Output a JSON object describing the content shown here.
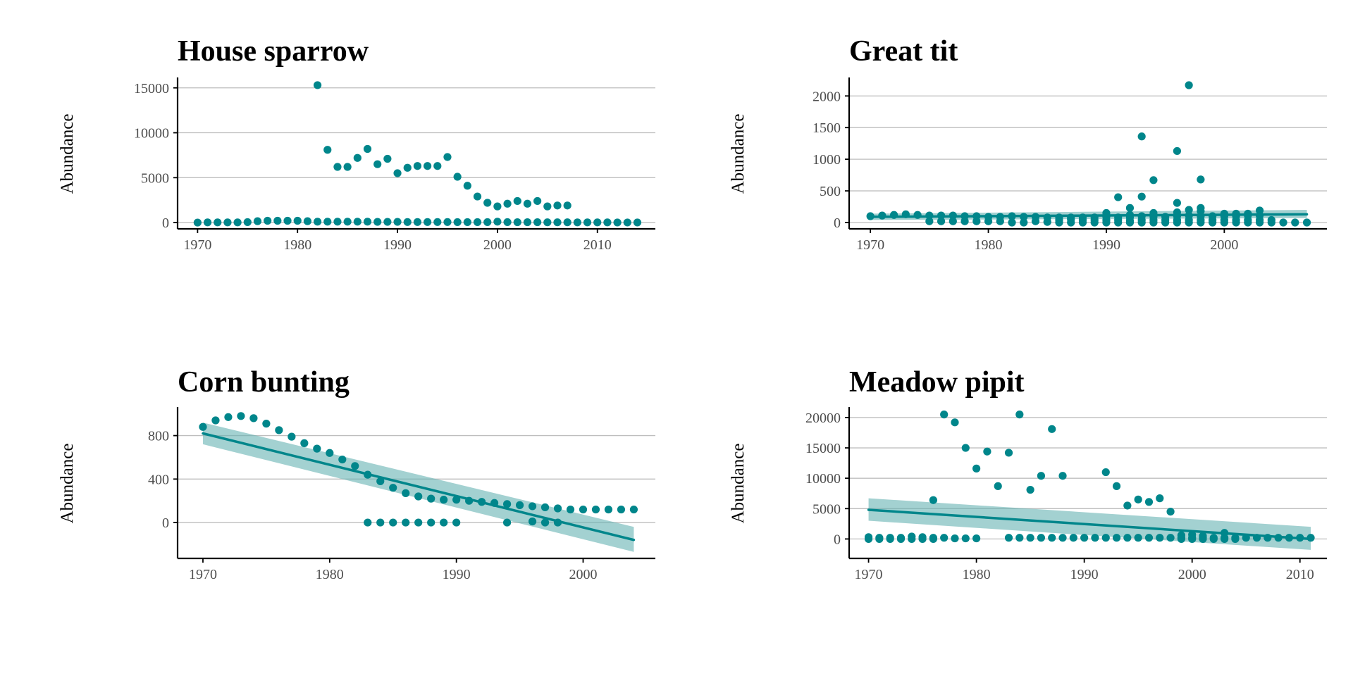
{
  "colors": {
    "point": "#00868B",
    "trend": "#00868B",
    "band": "#66B2B2",
    "grid": "#BEBEBE",
    "axis": "#000000",
    "tick_text": "#4D4D4D"
  },
  "chart_data": [
    {
      "type": "scatter",
      "title": "House sparrow",
      "xlabel": "",
      "ylabel": "Abundance",
      "xlim": [
        1968,
        2015.8
      ],
      "ylim": [
        -700,
        16000
      ],
      "xticks": [
        1970,
        1980,
        1990,
        2000,
        2010
      ],
      "xtick_labels": [
        "1970",
        "1980",
        "1990",
        "2000",
        "2010"
      ],
      "yticks": [
        0,
        5000,
        10000,
        15000
      ],
      "ytick_labels": [
        "0",
        "5000",
        "10000",
        "15000"
      ],
      "grid": "horizontal",
      "points": [
        [
          1970,
          0
        ],
        [
          1971,
          20
        ],
        [
          1972,
          20
        ],
        [
          1973,
          20
        ],
        [
          1974,
          20
        ],
        [
          1975,
          50
        ],
        [
          1976,
          150
        ],
        [
          1977,
          200
        ],
        [
          1978,
          200
        ],
        [
          1979,
          200
        ],
        [
          1980,
          200
        ],
        [
          1981,
          150
        ],
        [
          1982,
          100
        ],
        [
          1983,
          100
        ],
        [
          1984,
          100
        ],
        [
          1985,
          100
        ],
        [
          1986,
          100
        ],
        [
          1987,
          100
        ],
        [
          1988,
          80
        ],
        [
          1989,
          80
        ],
        [
          1990,
          80
        ],
        [
          1991,
          60
        ],
        [
          1992,
          60
        ],
        [
          1993,
          60
        ],
        [
          1994,
          60
        ],
        [
          1995,
          60
        ],
        [
          1996,
          50
        ],
        [
          1997,
          50
        ],
        [
          1998,
          50
        ],
        [
          1999,
          50
        ],
        [
          2000,
          100
        ],
        [
          2001,
          50
        ],
        [
          2002,
          40
        ],
        [
          2003,
          40
        ],
        [
          2004,
          40
        ],
        [
          2005,
          30
        ],
        [
          2006,
          30
        ],
        [
          2007,
          30
        ],
        [
          2008,
          20
        ],
        [
          2009,
          20
        ],
        [
          2010,
          20
        ],
        [
          2011,
          20
        ],
        [
          2012,
          10
        ],
        [
          2013,
          10
        ],
        [
          2014,
          10
        ],
        [
          1982,
          15300
        ],
        [
          1983,
          8100
        ],
        [
          1984,
          6200
        ],
        [
          1985,
          6200
        ],
        [
          1986,
          7200
        ],
        [
          1987,
          8200
        ],
        [
          1988,
          6500
        ],
        [
          1989,
          7100
        ],
        [
          1990,
          5500
        ],
        [
          1991,
          6100
        ],
        [
          1992,
          6300
        ],
        [
          1993,
          6300
        ],
        [
          1994,
          6300
        ],
        [
          1995,
          7300
        ],
        [
          1996,
          5100
        ],
        [
          1997,
          4100
        ],
        [
          1998,
          2900
        ],
        [
          1999,
          2200
        ],
        [
          2000,
          1800
        ],
        [
          2001,
          2100
        ],
        [
          2002,
          2400
        ],
        [
          2003,
          2100
        ],
        [
          2004,
          2400
        ],
        [
          2005,
          1800
        ],
        [
          2006,
          1900
        ],
        [
          2007,
          1900
        ]
      ],
      "trend": null
    },
    {
      "type": "scatter",
      "title": "Great tit",
      "xlabel": "",
      "ylabel": "Abundance",
      "xlim": [
        1968.2,
        2008.7
      ],
      "ylim": [
        -100,
        2270
      ],
      "xticks": [
        1970,
        1980,
        1990,
        2000
      ],
      "xtick_labels": [
        "1970",
        "1980",
        "1990",
        "2000"
      ],
      "yticks": [
        0,
        500,
        1000,
        1500,
        2000
      ],
      "ytick_labels": [
        "0",
        "500",
        "1000",
        "1500",
        "2000"
      ],
      "grid": "horizontal",
      "points": [
        [
          1970,
          100
        ],
        [
          1971,
          110
        ],
        [
          1972,
          120
        ],
        [
          1973,
          130
        ],
        [
          1974,
          120
        ],
        [
          1975,
          110
        ],
        [
          1976,
          110
        ],
        [
          1977,
          110
        ],
        [
          1978,
          100
        ],
        [
          1979,
          100
        ],
        [
          1980,
          90
        ],
        [
          1981,
          90
        ],
        [
          1982,
          100
        ],
        [
          1983,
          90
        ],
        [
          1984,
          90
        ],
        [
          1985,
          80
        ],
        [
          1986,
          80
        ],
        [
          1987,
          80
        ],
        [
          1988,
          80
        ],
        [
          1989,
          80
        ],
        [
          1990,
          90
        ],
        [
          1991,
          80
        ],
        [
          1992,
          80
        ],
        [
          1993,
          100
        ],
        [
          1994,
          90
        ],
        [
          1995,
          90
        ],
        [
          1996,
          100
        ],
        [
          1997,
          110
        ],
        [
          1998,
          100
        ],
        [
          1999,
          100
        ],
        [
          2000,
          100
        ],
        [
          2001,
          100
        ],
        [
          2002,
          110
        ],
        [
          2003,
          110
        ],
        [
          1975,
          20
        ],
        [
          1976,
          20
        ],
        [
          1977,
          20
        ],
        [
          1978,
          20
        ],
        [
          1979,
          20
        ],
        [
          1980,
          20
        ],
        [
          1981,
          20
        ],
        [
          1982,
          0
        ],
        [
          1983,
          0
        ],
        [
          1984,
          20
        ],
        [
          1985,
          10
        ],
        [
          1986,
          0
        ],
        [
          1987,
          0
        ],
        [
          1988,
          0
        ],
        [
          1989,
          0
        ],
        [
          1990,
          0
        ],
        [
          1991,
          0
        ],
        [
          1992,
          0
        ],
        [
          1993,
          0
        ],
        [
          1994,
          0
        ],
        [
          1995,
          0
        ],
        [
          1996,
          0
        ],
        [
          1997,
          0
        ],
        [
          1998,
          0
        ],
        [
          1999,
          0
        ],
        [
          2000,
          0
        ],
        [
          2001,
          0
        ],
        [
          2002,
          0
        ],
        [
          2003,
          0
        ],
        [
          2004,
          0
        ],
        [
          2005,
          0
        ],
        [
          2006,
          0
        ],
        [
          2007,
          0
        ],
        [
          1986,
          40
        ],
        [
          1987,
          50
        ],
        [
          1988,
          40
        ],
        [
          1989,
          40
        ],
        [
          1990,
          40
        ],
        [
          1991,
          40
        ],
        [
          1992,
          30
        ],
        [
          1993,
          40
        ],
        [
          1994,
          40
        ],
        [
          1995,
          40
        ],
        [
          1996,
          40
        ],
        [
          1997,
          40
        ],
        [
          1998,
          40
        ],
        [
          1999,
          40
        ],
        [
          2000,
          40
        ],
        [
          2001,
          40
        ],
        [
          2002,
          40
        ],
        [
          2003,
          40
        ],
        [
          2004,
          40
        ],
        [
          1990,
          150
        ],
        [
          1992,
          120
        ],
        [
          1994,
          150
        ],
        [
          1996,
          160
        ],
        [
          1997,
          200
        ],
        [
          1998,
          180
        ],
        [
          2000,
          140
        ],
        [
          2001,
          140
        ],
        [
          2002,
          140
        ],
        [
          2003,
          190
        ],
        [
          1991,
          400
        ],
        [
          1992,
          230
        ],
        [
          1993,
          1360
        ],
        [
          1993,
          410
        ],
        [
          1994,
          670
        ],
        [
          1996,
          1130
        ],
        [
          1996,
          310
        ],
        [
          1997,
          2170
        ],
        [
          1998,
          680
        ],
        [
          1998,
          230
        ]
      ],
      "trend": {
        "x": [
          1970,
          2007
        ],
        "y": [
          90,
          130
        ],
        "band_lower": [
          40,
          70
        ],
        "band_upper": [
          140,
          200
        ]
      }
    },
    {
      "type": "scatter",
      "title": "Corn bunting",
      "xlabel": "",
      "ylabel": "Abundance",
      "xlim": [
        1968,
        2005.7
      ],
      "ylim": [
        -330,
        1050
      ],
      "xticks": [
        1970,
        1980,
        1990,
        2000
      ],
      "xtick_labels": [
        "1970",
        "1980",
        "1990",
        "2000"
      ],
      "yticks": [
        0,
        400,
        800
      ],
      "ytick_labels": [
        "0",
        "400",
        "800"
      ],
      "grid": "horizontal",
      "points": [
        [
          1970,
          880
        ],
        [
          1971,
          940
        ],
        [
          1972,
          970
        ],
        [
          1973,
          980
        ],
        [
          1974,
          960
        ],
        [
          1975,
          910
        ],
        [
          1976,
          850
        ],
        [
          1977,
          790
        ],
        [
          1978,
          730
        ],
        [
          1979,
          680
        ],
        [
          1980,
          640
        ],
        [
          1981,
          580
        ],
        [
          1982,
          520
        ],
        [
          1983,
          440
        ],
        [
          1984,
          380
        ],
        [
          1985,
          320
        ],
        [
          1986,
          270
        ],
        [
          1987,
          240
        ],
        [
          1988,
          220
        ],
        [
          1989,
          210
        ],
        [
          1990,
          210
        ],
        [
          1991,
          200
        ],
        [
          1992,
          190
        ],
        [
          1993,
          180
        ],
        [
          1994,
          170
        ],
        [
          1995,
          160
        ],
        [
          1996,
          150
        ],
        [
          1997,
          140
        ],
        [
          1998,
          130
        ],
        [
          1999,
          120
        ],
        [
          2000,
          120
        ],
        [
          2001,
          120
        ],
        [
          2002,
          120
        ],
        [
          2003,
          120
        ],
        [
          2004,
          120
        ],
        [
          1983,
          0
        ],
        [
          1984,
          0
        ],
        [
          1985,
          0
        ],
        [
          1986,
          0
        ],
        [
          1987,
          0
        ],
        [
          1988,
          0
        ],
        [
          1989,
          0
        ],
        [
          1990,
          0
        ],
        [
          1994,
          0
        ],
        [
          1996,
          10
        ],
        [
          1997,
          0
        ],
        [
          1998,
          0
        ]
      ],
      "trend": {
        "x": [
          1970,
          2004
        ],
        "y": [
          820,
          -160
        ],
        "band_lower": [
          720,
          -270
        ],
        "band_upper": [
          920,
          -40
        ]
      }
    },
    {
      "type": "scatter",
      "title": "Meadow pipit",
      "xlabel": "",
      "ylabel": "Abundance",
      "xlim": [
        1968.2,
        2012.5
      ],
      "ylim": [
        -3200,
        21500
      ],
      "xticks": [
        1970,
        1980,
        1990,
        2000,
        2010
      ],
      "xtick_labels": [
        "1970",
        "1980",
        "1990",
        "2000",
        "2010"
      ],
      "yticks": [
        0,
        5000,
        10000,
        15000,
        20000
      ],
      "ytick_labels": [
        "0",
        "5000",
        "10000",
        "15000",
        "20000"
      ],
      "grid": "horizontal",
      "points": [
        [
          1970,
          300
        ],
        [
          1971,
          200
        ],
        [
          1972,
          200
        ],
        [
          1973,
          200
        ],
        [
          1974,
          400
        ],
        [
          1975,
          300
        ],
        [
          1976,
          200
        ],
        [
          1977,
          200
        ],
        [
          1978,
          100
        ],
        [
          1979,
          100
        ],
        [
          1980,
          100
        ],
        [
          1983,
          200
        ],
        [
          1984,
          200
        ],
        [
          1985,
          200
        ],
        [
          1986,
          200
        ],
        [
          1987,
          200
        ],
        [
          1988,
          200
        ],
        [
          1989,
          200
        ],
        [
          1990,
          200
        ],
        [
          1991,
          200
        ],
        [
          1992,
          200
        ],
        [
          1993,
          200
        ],
        [
          1994,
          200
        ],
        [
          1995,
          200
        ],
        [
          1996,
          200
        ],
        [
          1997,
          200
        ],
        [
          1998,
          200
        ],
        [
          1999,
          200
        ],
        [
          2000,
          200
        ],
        [
          2001,
          200
        ],
        [
          2002,
          200
        ],
        [
          2003,
          200
        ],
        [
          2004,
          200
        ],
        [
          2005,
          200
        ],
        [
          2006,
          200
        ],
        [
          2007,
          200
        ],
        [
          2008,
          200
        ],
        [
          2009,
          200
        ],
        [
          2010,
          200
        ],
        [
          2011,
          200
        ],
        [
          1970,
          0
        ],
        [
          1971,
          0
        ],
        [
          1972,
          0
        ],
        [
          1973,
          0
        ],
        [
          1974,
          0
        ],
        [
          1975,
          0
        ],
        [
          1976,
          0
        ],
        [
          1999,
          0
        ],
        [
          2000,
          0
        ],
        [
          2001,
          0
        ],
        [
          2002,
          0
        ],
        [
          2003,
          0
        ],
        [
          2004,
          0
        ],
        [
          1999,
          600
        ],
        [
          2000,
          700
        ],
        [
          2001,
          500
        ],
        [
          2003,
          1000
        ],
        [
          1976,
          6400
        ],
        [
          1977,
          20500
        ],
        [
          1978,
          19200
        ],
        [
          1979,
          15000
        ],
        [
          1980,
          11600
        ],
        [
          1981,
          14400
        ],
        [
          1982,
          8700
        ],
        [
          1983,
          14200
        ],
        [
          1984,
          20500
        ],
        [
          1985,
          8100
        ],
        [
          1986,
          10400
        ],
        [
          1987,
          18100
        ],
        [
          1988,
          10400
        ],
        [
          1992,
          11000
        ],
        [
          1993,
          8700
        ],
        [
          1994,
          5500
        ],
        [
          1995,
          6500
        ],
        [
          1996,
          6100
        ],
        [
          1997,
          6700
        ],
        [
          1998,
          4500
        ]
      ],
      "trend": {
        "x": [
          1970,
          2011
        ],
        "y": [
          4800,
          0
        ],
        "band_lower": [
          3000,
          -1800
        ],
        "band_upper": [
          6700,
          2000
        ]
      }
    }
  ]
}
